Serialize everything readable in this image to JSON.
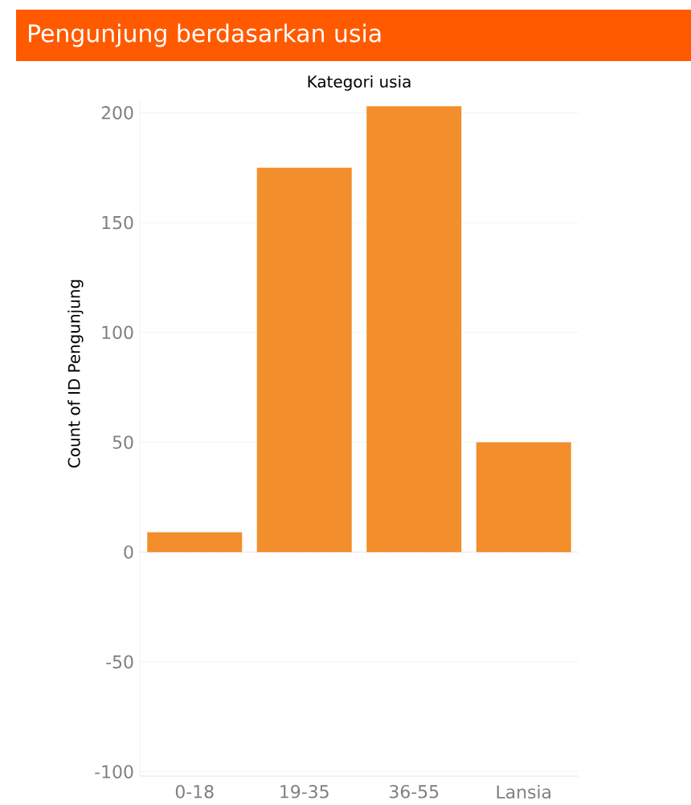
{
  "chart_data": {
    "type": "bar",
    "title": "Pengunjung berdasarkan usia",
    "xlabel": "Kategori usia",
    "ylabel": "Count of ID Pengunjung",
    "categories": [
      "0-18",
      "19-35",
      "36-55",
      "Lansia"
    ],
    "values": [
      9,
      175,
      203,
      50
    ],
    "color": "#f28e2b",
    "ylim": [
      -102,
      206
    ],
    "yticks": [
      -100,
      -50,
      0,
      50,
      100,
      150,
      200
    ],
    "grid": "y",
    "ref_lines": [
      {
        "axis": "y",
        "value": 0,
        "color": "#bbbbbb",
        "line_style": "dotted"
      }
    ]
  }
}
